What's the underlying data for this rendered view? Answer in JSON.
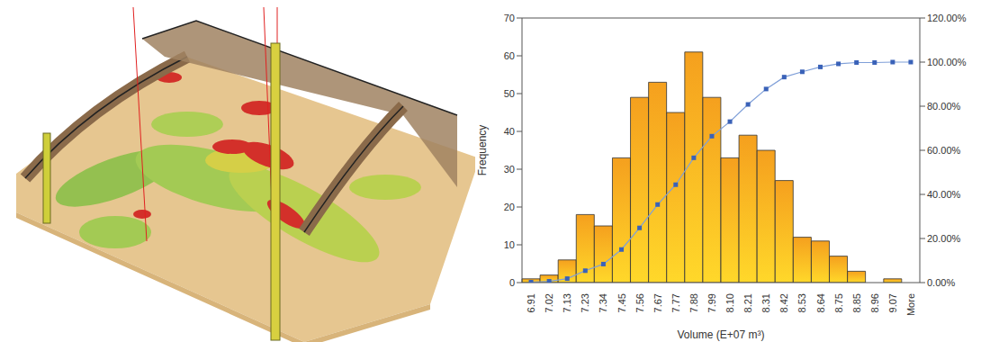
{
  "chart_data": {
    "type": "bar",
    "x_label": "Volume (E+07 m³)",
    "y_label": "Frequency",
    "categories": [
      "6.91",
      "7.02",
      "7.13",
      "7.23",
      "7.34",
      "7.45",
      "7.56",
      "7.67",
      "7.77",
      "7.88",
      "7.99",
      "8.10",
      "8.21",
      "8.31",
      "8.42",
      "8.53",
      "8.64",
      "8.75",
      "8.85",
      "8.96",
      "9.07",
      "More"
    ],
    "series": [
      {
        "type": "bar",
        "color": "#f5a01e",
        "values": [
          1,
          2,
          6,
          18,
          15,
          33,
          49,
          53,
          45,
          61,
          49,
          33,
          39,
          35,
          27,
          12,
          11,
          7,
          3,
          0,
          1,
          0
        ]
      },
      {
        "type": "line",
        "axis": "y2",
        "color": "#7f9fd8",
        "marker": "square",
        "values": [
          0.2,
          0.6,
          1.8,
          5.4,
          8.4,
          15,
          24.8,
          35.4,
          44.4,
          56.6,
          66.4,
          73,
          80.8,
          87.8,
          93.2,
          95.6,
          97.8,
          99.2,
          99.8,
          99.8,
          100,
          100
        ]
      }
    ],
    "ylim": [
      0,
      70
    ],
    "yticks": [
      0,
      10,
      20,
      30,
      40,
      50,
      60,
      70
    ],
    "y2lim": [
      0,
      120
    ],
    "y2ticks": [
      {
        "value": 0,
        "label": "0.00%"
      },
      {
        "value": 20,
        "label": "20.00%"
      },
      {
        "value": 40,
        "label": "40.00%"
      },
      {
        "value": 60,
        "label": "60.00%"
      },
      {
        "value": 80,
        "label": "80.00%"
      },
      {
        "value": 100,
        "label": "100.00%"
      },
      {
        "value": 120,
        "label": "120.00%"
      }
    ]
  }
}
